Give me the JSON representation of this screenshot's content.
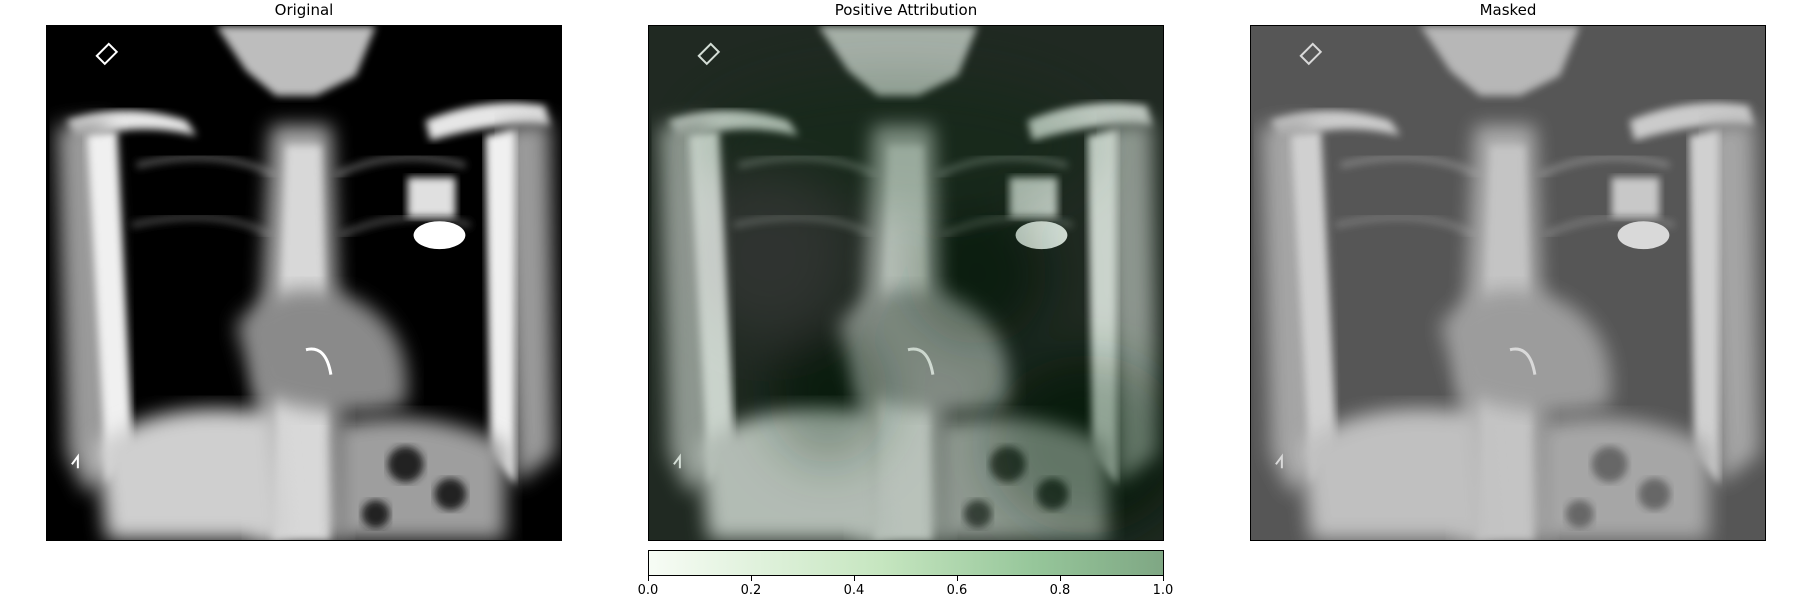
{
  "panels": {
    "original_title": "Original",
    "attribution_title": "Positive Attribution",
    "masked_title": "Masked"
  },
  "colorbar": {
    "ticks": [
      "0.0",
      "0.2",
      "0.4",
      "0.6",
      "0.8",
      "1.0"
    ],
    "range": [
      0,
      1
    ],
    "color_low": "#f7fcf5",
    "color_high": "#7fa784"
  },
  "colors": {
    "heat_dark": "#0d3b1a",
    "heat_mid": "#4a7a55",
    "bone": "#ffffff",
    "background": "#000000"
  }
}
